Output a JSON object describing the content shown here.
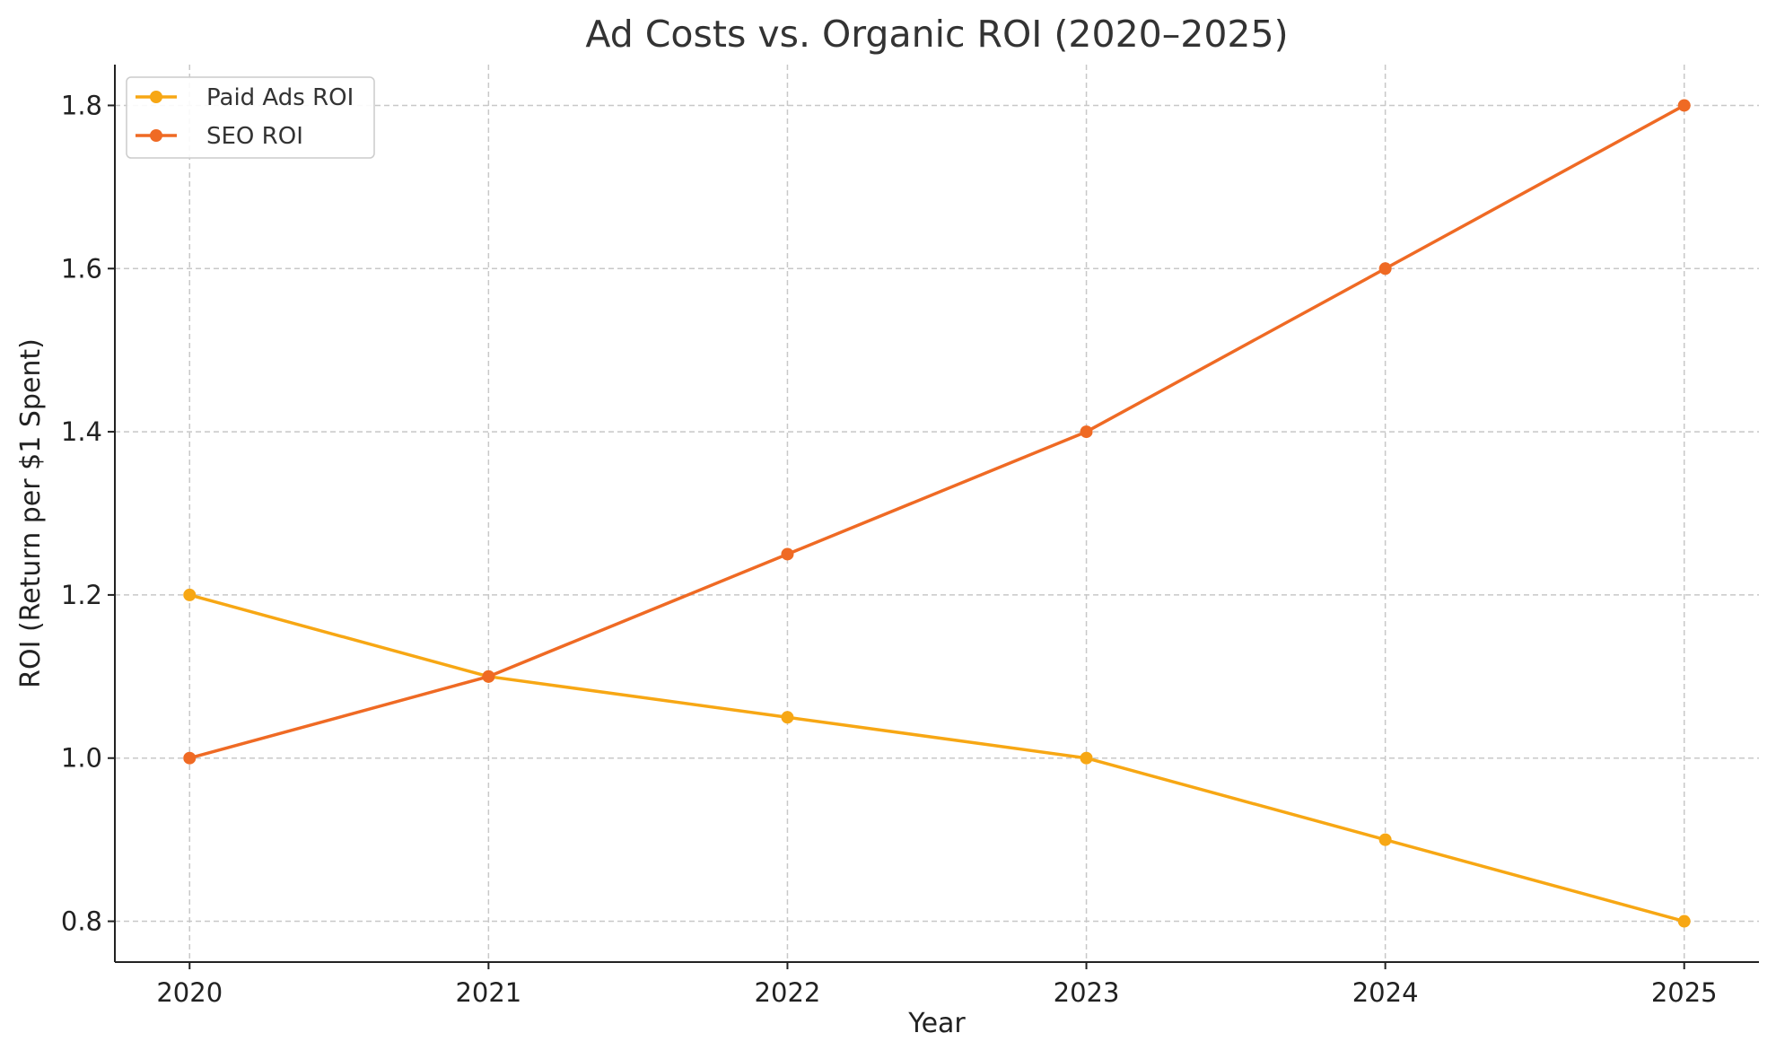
{
  "chart_data": {
    "type": "line",
    "title": "Ad Costs vs. Organic ROI (2020–2025)",
    "xlabel": "Year",
    "ylabel": "ROI (Return per $1 Spent)",
    "x": [
      2020,
      2021,
      2022,
      2023,
      2024,
      2025
    ],
    "x_tick_labels": [
      "2020",
      "2021",
      "2022",
      "2023",
      "2024",
      "2025"
    ],
    "y_ticks": [
      0.8,
      1.0,
      1.2,
      1.4,
      1.6,
      1.8
    ],
    "y_tick_labels": [
      "0.8",
      "1.0",
      "1.2",
      "1.4",
      "1.6",
      "1.8"
    ],
    "xlim": [
      2019.75,
      2025.25
    ],
    "ylim": [
      0.75,
      1.85
    ],
    "grid": true,
    "legend_position": "top-left",
    "series": [
      {
        "name": "Paid Ads ROI",
        "color": "#F7A714",
        "values": [
          1.2,
          1.1,
          1.05,
          1.0,
          0.9,
          0.8
        ]
      },
      {
        "name": "SEO ROI",
        "color": "#EF6A24",
        "values": [
          1.0,
          1.1,
          1.25,
          1.4,
          1.6,
          1.8
        ]
      }
    ]
  }
}
